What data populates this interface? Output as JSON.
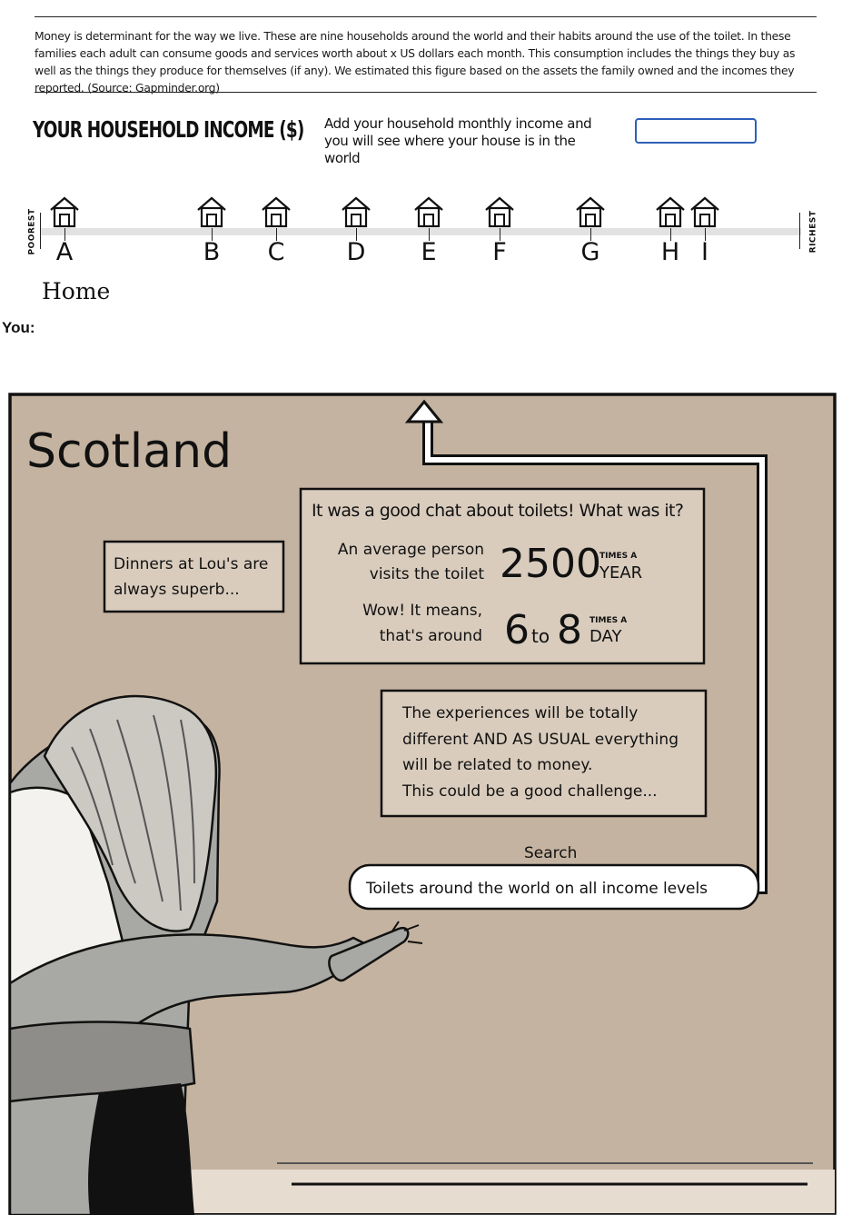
{
  "intro": {
    "text": "Money is determinant for the way we live. These are nine households around the world and their habits around the use of the toilet. In these families each adult can consume goods and services worth about x US dollars each month. This consumption includes the things they buy as well as the things they produce for themselves (if any). We estimated this figure based on the assets the family owned and the incomes they reported. (Source: Gapminder.org)"
  },
  "income": {
    "title": "YOUR HOUSEHOLD INCOME ($)",
    "help": "Add your household monthly income and you will see where your house is in the world",
    "input_value": "",
    "input_placeholder": ""
  },
  "scale": {
    "left_label": "POOREST",
    "right_label": "RICHEST",
    "houses": [
      "A",
      "B",
      "C",
      "D",
      "E",
      "F",
      "G",
      "H",
      "I"
    ]
  },
  "home_label": "Home",
  "you_label": "You:",
  "comic": {
    "location": "Scotland",
    "caption_left": [
      "Dinners at Lou's are",
      "always superb..."
    ],
    "fact_title": "It was a good chat about toilets! What was it?",
    "fact_line1": [
      "An average person",
      "visits the toilet"
    ],
    "fact_number": "2500",
    "fact_unit": [
      "TIMES A",
      "YEAR"
    ],
    "fact_line2": [
      "Wow! It means,",
      "that's around"
    ],
    "fact_range_low": "6",
    "fact_range_to": "to",
    "fact_range_high": "8",
    "fact_unit2": [
      "TIMES A",
      "DAY"
    ],
    "caption_right": [
      "The experiences will be totally",
      "different AND AS USUAL everything",
      "will be related to money.",
      "This could be a good challenge..."
    ],
    "search_label": "Search",
    "search_text": "Toilets around the world on all income levels"
  },
  "colors": {
    "panel_bg": "#c4b3a0",
    "caption_bg": "#d9ccbd",
    "input_border": "#2d5fb8",
    "track": "#e2e2e2"
  }
}
